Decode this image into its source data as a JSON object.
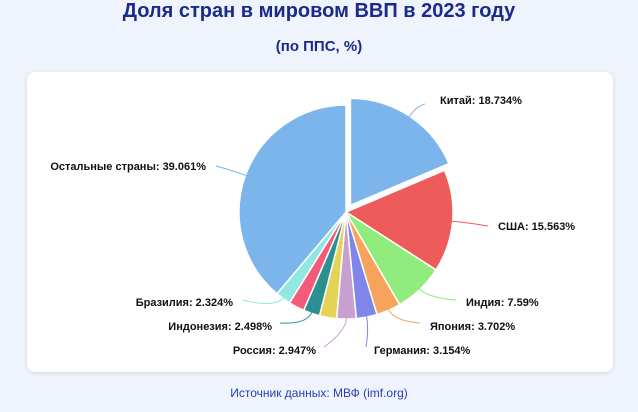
{
  "title": "Доля стран в мировом ВВП в 2023 году",
  "subtitle": "(по ППС, %)",
  "source": "Источник данных: МВФ (imf.org)",
  "chart_data": {
    "type": "pie",
    "title": "Доля стран в мировом ВВП в 2023 году",
    "subtitle": "(по ППС, %)",
    "unit": "%",
    "slices": [
      {
        "name": "Китай",
        "value": 18.734,
        "label": "Китай: 18.734%",
        "color": "#7cb5ec",
        "exploded": true
      },
      {
        "name": "США",
        "value": 15.563,
        "label": "США: 15.563%",
        "color": "#ee5b5b"
      },
      {
        "name": "Индия",
        "value": 7.59,
        "label": "Индия: 7.59%",
        "color": "#90ed7d"
      },
      {
        "name": "Япония",
        "value": 3.702,
        "label": "Япония: 3.702%",
        "color": "#f7a35c"
      },
      {
        "name": "Германия",
        "value": 3.154,
        "label": "Германия: 3.154%",
        "color": "#8085e9"
      },
      {
        "name": "Россия",
        "value": 2.947,
        "label": "Россия: 2.947%",
        "color": "#c99fd0"
      },
      {
        "name": "",
        "value": 2.6,
        "label": "",
        "color": "#e4d354"
      },
      {
        "name": "Индонезия",
        "value": 2.498,
        "label": "Индонезия: 2.498%",
        "color": "#2b908f"
      },
      {
        "name": "",
        "value": 2.4,
        "label": "",
        "color": "#f45b7a"
      },
      {
        "name": "Бразилия",
        "value": 2.324,
        "label": "Бразилия: 2.324%",
        "color": "#91e8e1"
      },
      {
        "name": "Остальные страны",
        "value": 39.061,
        "label": "Остальные страны: 39.061%",
        "color": "#7cb5ec"
      }
    ]
  }
}
